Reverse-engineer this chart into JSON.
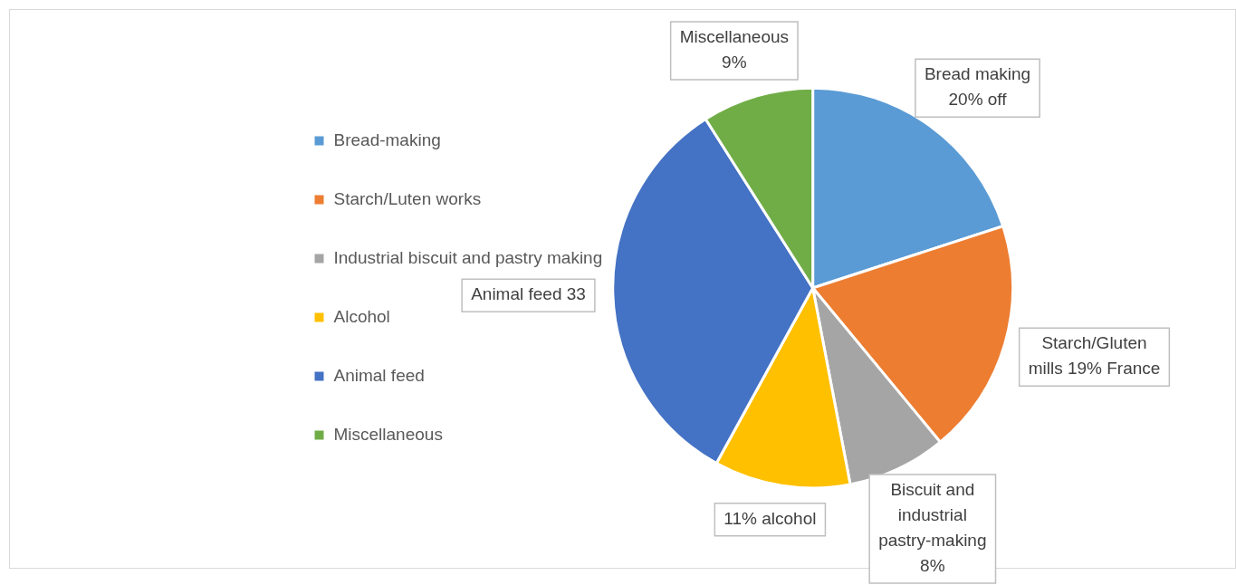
{
  "chart_data": {
    "type": "pie",
    "categories": [
      "Bread-making",
      "Starch/Luten works",
      "Industrial biscuit and pastry making",
      "Alcohol",
      "Animal feed",
      "Miscellaneous"
    ],
    "values": [
      20,
      19,
      8,
      11,
      33,
      9
    ],
    "colors": [
      "#5b9bd5",
      "#ed7d31",
      "#a5a5a5",
      "#ffc000",
      "#4472c4",
      "#70ad47"
    ],
    "value_labels": [
      "Bread making 20% off",
      "Starch/Gluten mills 19% France",
      "Biscuit and industrial pastry-making 8%",
      "11% alcohol",
      "Animal feed 33",
      "Miscellaneous 9%"
    ],
    "legend": "left"
  }
}
